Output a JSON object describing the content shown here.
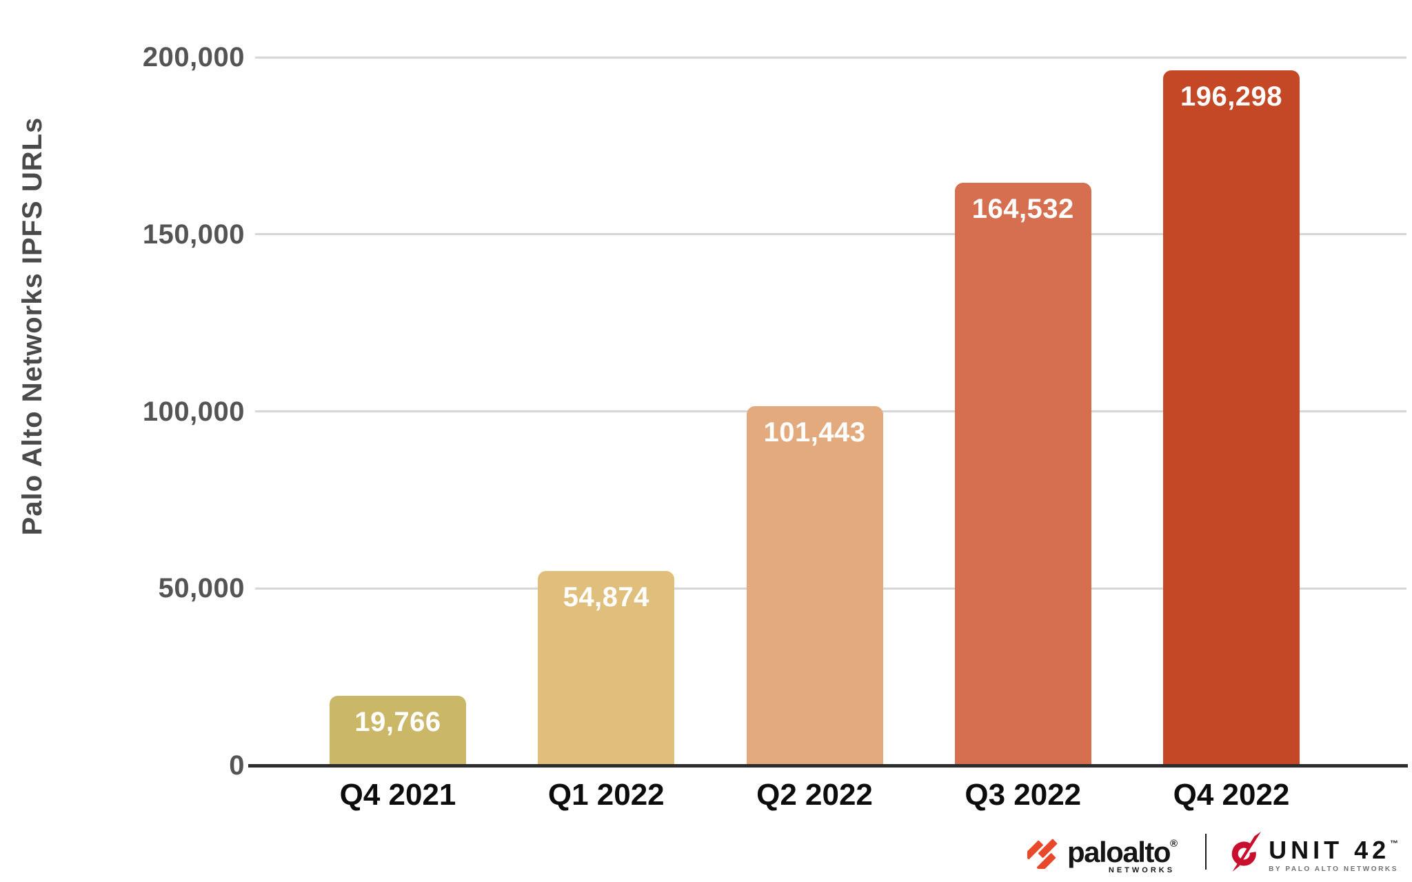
{
  "chart_data": {
    "type": "bar",
    "title": "",
    "ylabel": "Palo Alto Networks IPFS URLs",
    "xlabel": "",
    "categories": [
      "Q4 2021",
      "Q1 2022",
      "Q2 2022",
      "Q3 2022",
      "Q4 2022"
    ],
    "values": [
      19766,
      54874,
      101443,
      164532,
      196298
    ],
    "value_labels": [
      "19,766",
      "54,874",
      "101,443",
      "164,532",
      "196,298"
    ],
    "bar_colors": [
      "#CBB768",
      "#E0BE7C",
      "#E3AA7D",
      "#D66F50",
      "#C54826"
    ],
    "ylim": [
      0,
      200000
    ],
    "yticks": [
      0,
      50000,
      100000,
      150000,
      200000
    ],
    "ytick_labels": [
      "0",
      "50,000",
      "100,000",
      "150,000",
      "200,000"
    ],
    "grid": true,
    "legend": "none",
    "value_label_position": "inside-top",
    "value_label_color": "#ffffff"
  },
  "colors": {
    "background": "#ffffff",
    "gridline": "#d6d6d6",
    "axis_line": "#2d2d2d",
    "ytick_label": "#545454",
    "axis_title": "#4a4a4a",
    "xtick_label": "#0c0c0c",
    "value_label": "#ffffff",
    "paloalto_orange": "#E8492B",
    "unit42_red": "#C8102E",
    "logo_text": "#151515"
  },
  "footer": {
    "paloalto_logo": {
      "icon": "paloalto-diagonal-stripes",
      "brand": "paloalto",
      "registered": "®",
      "subtext": "NETWORKS"
    },
    "unit42_logo": {
      "icon": "unit42-needle-ring",
      "brand": "UNIT 42",
      "trademark": "™",
      "subtext": "BY PALO ALTO NETWORKS"
    }
  }
}
